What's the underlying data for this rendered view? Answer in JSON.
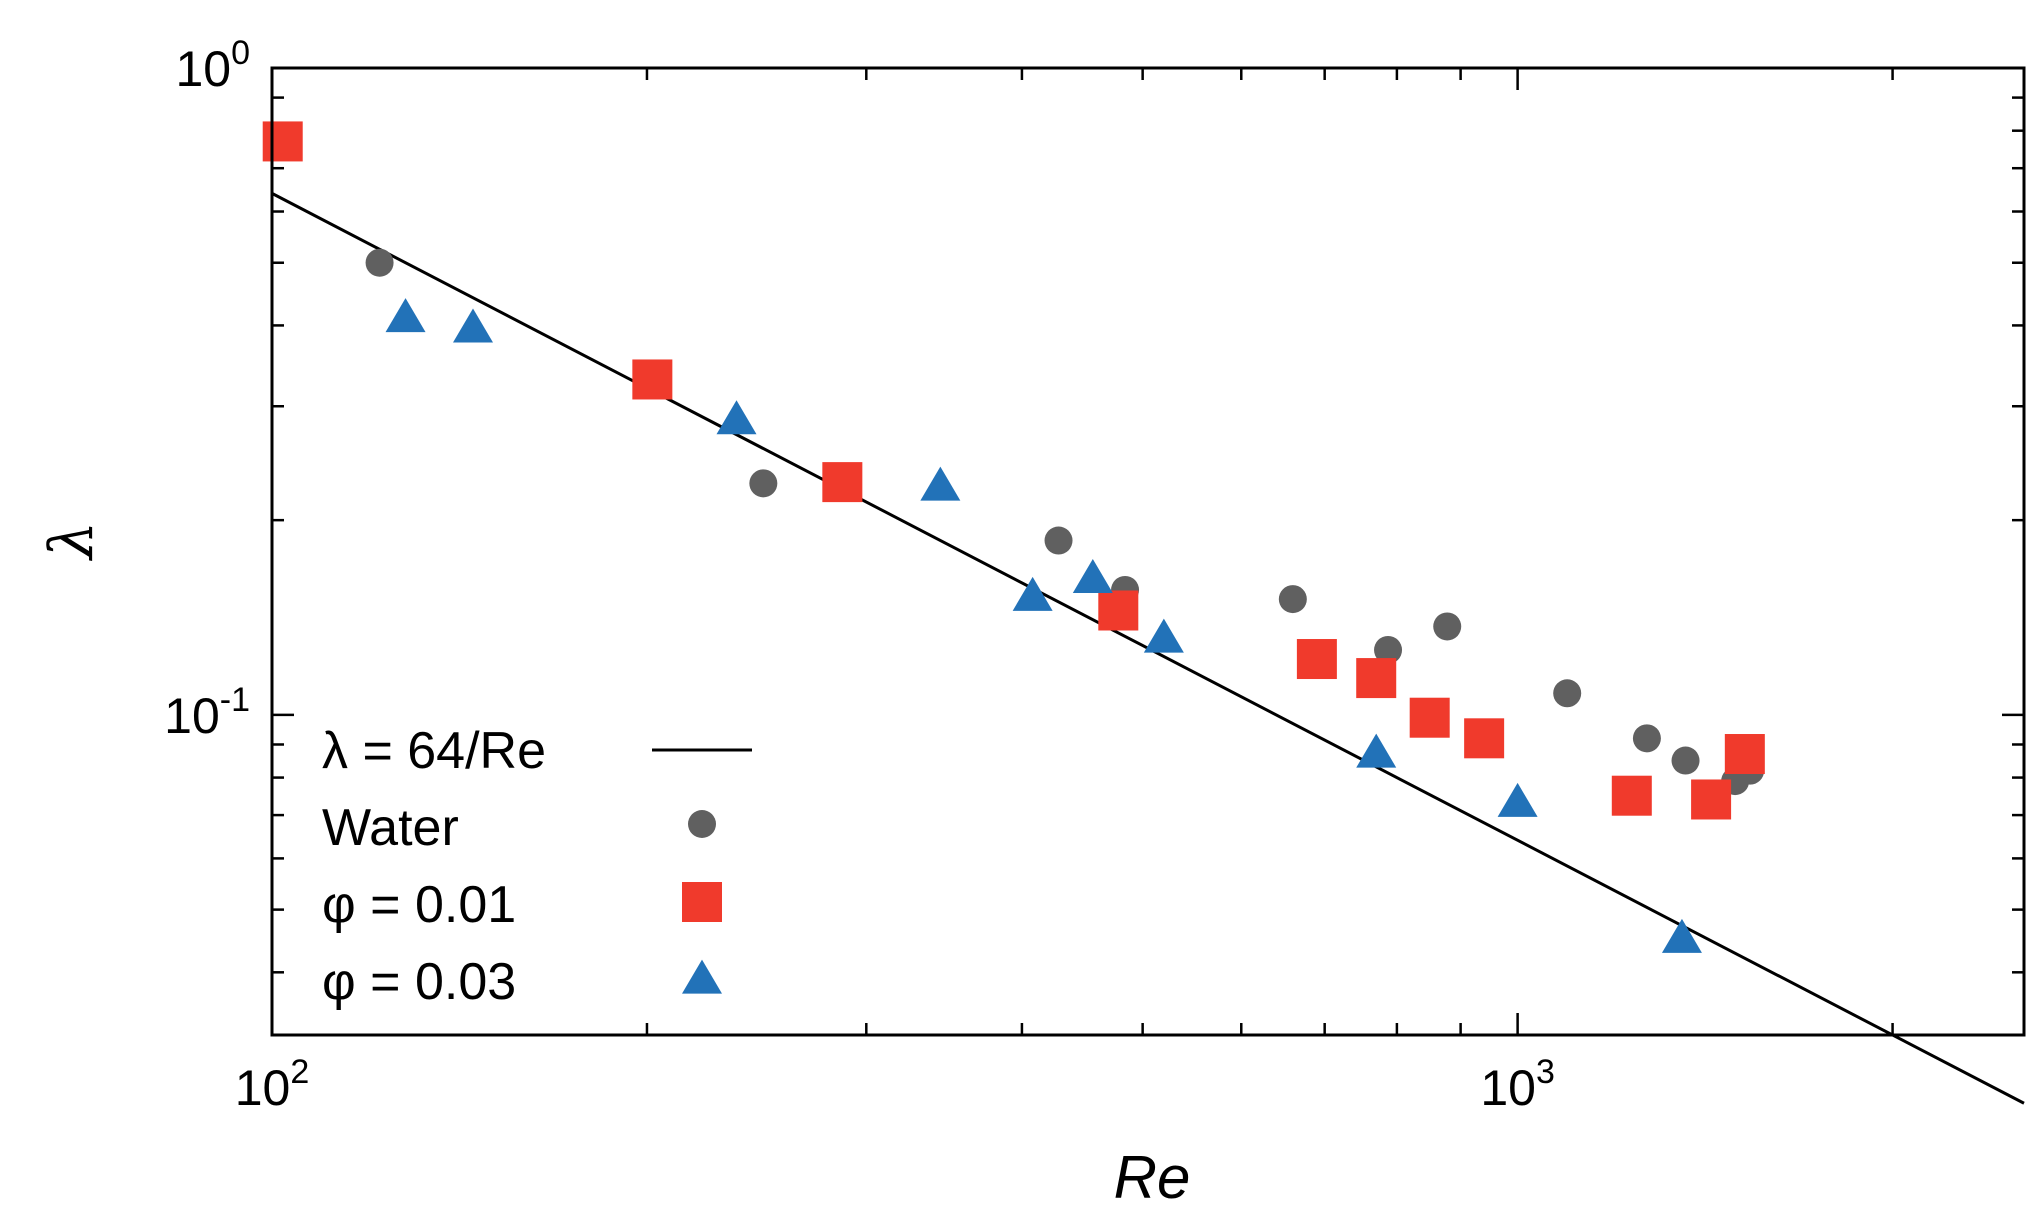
{
  "chart_data": {
    "type": "scatter",
    "title": "",
    "xscale": "log",
    "yscale": "log",
    "xlabel": "Re",
    "ylabel": "λ",
    "xlim": [
      100,
      2550
    ],
    "ylim": [
      0.032,
      1.0
    ],
    "xticks": [
      {
        "base": "10",
        "exp": "2"
      },
      {
        "base": "10",
        "exp": "3"
      }
    ],
    "yticks": [
      {
        "base": "10",
        "exp": "-1"
      },
      {
        "base": "10",
        "exp": "0"
      }
    ],
    "legend_position": "bottom-left",
    "line": {
      "name": "λ = 64/Re",
      "formula": "64/Re",
      "color": "#000000"
    },
    "series": [
      {
        "name": "Water",
        "marker": "circle",
        "color": "#606060",
        "points": [
          [
            122,
            0.5
          ],
          [
            248,
            0.228
          ],
          [
            428,
            0.186
          ],
          [
            484,
            0.156
          ],
          [
            660,
            0.151
          ],
          [
            787,
            0.126
          ],
          [
            878,
            0.137
          ],
          [
            1096,
            0.108
          ],
          [
            1270,
            0.092
          ],
          [
            1364,
            0.085
          ],
          [
            1495,
            0.079
          ],
          [
            1537,
            0.082
          ]
        ]
      },
      {
        "name": "φ = 0.01",
        "marker": "square",
        "color": "#f03a2c",
        "points": [
          [
            102,
            0.77
          ],
          [
            202,
            0.33
          ],
          [
            287,
            0.229
          ],
          [
            478,
            0.145
          ],
          [
            690,
            0.122
          ],
          [
            770,
            0.114
          ],
          [
            850,
            0.099
          ],
          [
            940,
            0.092
          ],
          [
            1235,
            0.075
          ],
          [
            1430,
            0.074
          ],
          [
            1522,
            0.087
          ]
        ]
      },
      {
        "name": "φ = 0.03",
        "marker": "triangle",
        "color": "#2272b8",
        "points": [
          [
            128,
            0.41
          ],
          [
            145,
            0.395
          ],
          [
            236,
            0.285
          ],
          [
            344,
            0.225
          ],
          [
            408,
            0.152
          ],
          [
            456,
            0.162
          ],
          [
            520,
            0.131
          ],
          [
            770,
            0.087
          ],
          [
            1000,
            0.073
          ],
          [
            1355,
            0.045
          ]
        ]
      }
    ]
  }
}
